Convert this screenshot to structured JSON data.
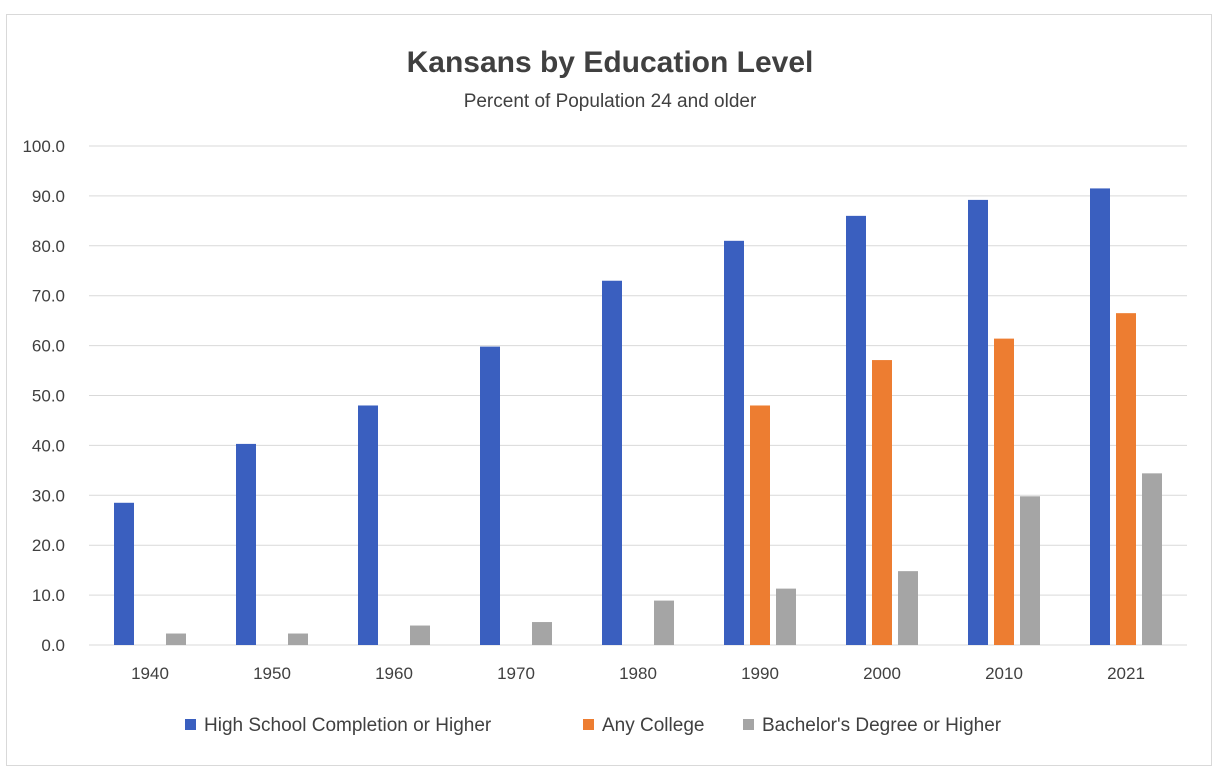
{
  "chart_data": {
    "type": "bar",
    "title": "Kansans by Education Level",
    "subtitle": "Percent of Population 24 and older",
    "categories": [
      "1940",
      "1950",
      "1960",
      "1970",
      "1980",
      "1990",
      "2000",
      "2010",
      "2021"
    ],
    "series": [
      {
        "name": "High School Completion or Higher",
        "color": "#3a5fbf",
        "values": [
          28.5,
          40.3,
          48.0,
          59.8,
          73.0,
          81.0,
          86.0,
          89.2,
          91.5
        ]
      },
      {
        "name": "Any College",
        "color": "#ed7d31",
        "values": [
          null,
          null,
          null,
          null,
          null,
          48.0,
          57.1,
          61.4,
          66.5
        ]
      },
      {
        "name": "Bachelor's Degree or Higher",
        "color": "#a5a5a5",
        "values": [
          2.3,
          2.3,
          3.9,
          4.6,
          8.9,
          11.3,
          14.8,
          29.8,
          34.4
        ]
      }
    ],
    "ylim": [
      0,
      100
    ],
    "yticks": [
      "0.0",
      "10.0",
      "20.0",
      "30.0",
      "40.0",
      "50.0",
      "60.0",
      "70.0",
      "80.0",
      "90.0",
      "100.0"
    ],
    "grid": true,
    "legend_position": "bottom"
  }
}
